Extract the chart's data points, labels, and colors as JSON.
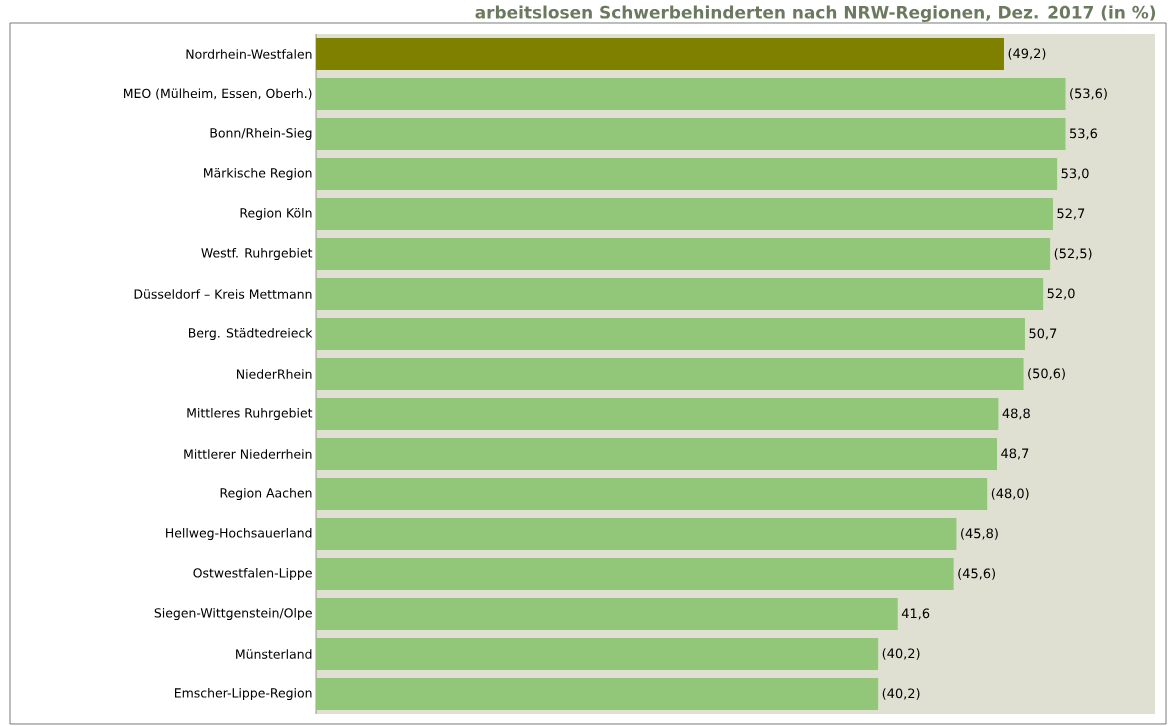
{
  "chart_data": {
    "type": "bar",
    "orientation": "horizontal",
    "title": "arbeitslosen Schwerbehinderten nach NRW-Regionen, Dez. 2017 (in %)",
    "categories": [
      "Nordrhein-Westfalen",
      "MEO (Mülheim, Essen, Oberh.)",
      "Bonn/Rhein-Sieg",
      "Märkische Region",
      "Region Köln",
      "Westf. Ruhrgebiet",
      "Düsseldorf – Kreis Mettmann",
      "Berg. Städtedreieck",
      "NiederRhein",
      "Mittleres Ruhrgebiet",
      "Mittlerer Niederrhein",
      "Region Aachen",
      "Hellweg-Hochsauerland",
      "Ostwestfalen-Lippe",
      "Siegen-Wittgenstein/Olpe",
      "Münsterland",
      "Emscher-Lippe-Region"
    ],
    "values": [
      49.2,
      53.6,
      53.6,
      53.0,
      52.7,
      52.5,
      52.0,
      50.7,
      50.6,
      48.8,
      48.7,
      48.0,
      45.8,
      45.6,
      41.6,
      40.2,
      40.2
    ],
    "value_labels": [
      "(49,2)",
      "(53,6)",
      "53,6",
      "53,0",
      "52,7",
      "(52,5)",
      "52,0",
      "50,7",
      "(50,6)",
      "48,8",
      "48,7",
      "(48,0)",
      "(45,8)",
      "(45,6)",
      "41,6",
      "(40,2)",
      "(40,2)"
    ],
    "colors": [
      "#808000",
      "#92c679",
      "#92c679",
      "#92c679",
      "#92c679",
      "#92c679",
      "#92c679",
      "#92c679",
      "#92c679",
      "#92c679",
      "#92c679",
      "#92c679",
      "#92c679",
      "#92c679",
      "#92c679",
      "#92c679",
      "#92c679"
    ],
    "xlim": [
      0,
      60
    ],
    "tick_labels": "y"
  }
}
